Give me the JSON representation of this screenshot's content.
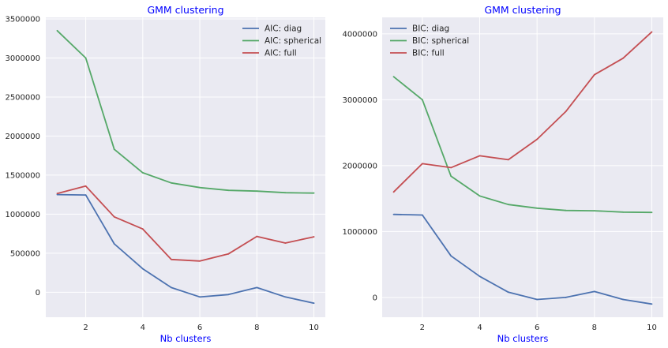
{
  "chart_data": [
    {
      "type": "line",
      "title": "GMM clustering",
      "xlabel": "Nb clusters",
      "ylabel": "",
      "x": [
        1,
        2,
        3,
        4,
        5,
        6,
        7,
        8,
        9,
        10
      ],
      "xlim": [
        0.6,
        10.4
      ],
      "ylim": [
        -320000,
        3520000
      ],
      "xticks": [
        "2",
        "4",
        "6",
        "8",
        "10"
      ],
      "yticks": [
        "0",
        "500000",
        "1000000",
        "1500000",
        "2000000",
        "2500000",
        "3000000",
        "3500000"
      ],
      "grid": true,
      "legend_position": "top-right",
      "series": [
        {
          "name": "AIC: diag",
          "color": "#4c72b0",
          "values": [
            1250000,
            1245000,
            620000,
            300000,
            60000,
            -60000,
            -30000,
            60000,
            -60000,
            -140000
          ]
        },
        {
          "name": "AIC: spherical",
          "color": "#55a868",
          "values": [
            3350000,
            3000000,
            1830000,
            1530000,
            1400000,
            1340000,
            1305000,
            1295000,
            1275000,
            1270000
          ]
        },
        {
          "name": "AIC: full",
          "color": "#c44e52",
          "values": [
            1265000,
            1360000,
            965000,
            810000,
            420000,
            400000,
            490000,
            715000,
            630000,
            710000
          ]
        }
      ]
    },
    {
      "type": "line",
      "title": "GMM clustering",
      "xlabel": "Nb clusters",
      "ylabel": "",
      "x": [
        1,
        2,
        3,
        4,
        5,
        6,
        7,
        8,
        9,
        10
      ],
      "xlim": [
        0.6,
        10.4
      ],
      "ylim": [
        -300000,
        4250000
      ],
      "xticks": [
        "2",
        "4",
        "6",
        "8",
        "10"
      ],
      "yticks": [
        "0",
        "1000000",
        "2000000",
        "3000000",
        "4000000"
      ],
      "grid": true,
      "legend_position": "top-left",
      "series": [
        {
          "name": "BIC: diag",
          "color": "#4c72b0",
          "values": [
            1260000,
            1250000,
            630000,
            320000,
            80000,
            -30000,
            0,
            90000,
            -30000,
            -100000
          ]
        },
        {
          "name": "BIC: spherical",
          "color": "#55a868",
          "values": [
            3350000,
            3000000,
            1840000,
            1540000,
            1410000,
            1355000,
            1320000,
            1315000,
            1295000,
            1290000
          ]
        },
        {
          "name": "BIC: full",
          "color": "#c44e52",
          "values": [
            1600000,
            2030000,
            1970000,
            2150000,
            2090000,
            2400000,
            2820000,
            3380000,
            3630000,
            4030000
          ]
        }
      ]
    }
  ]
}
